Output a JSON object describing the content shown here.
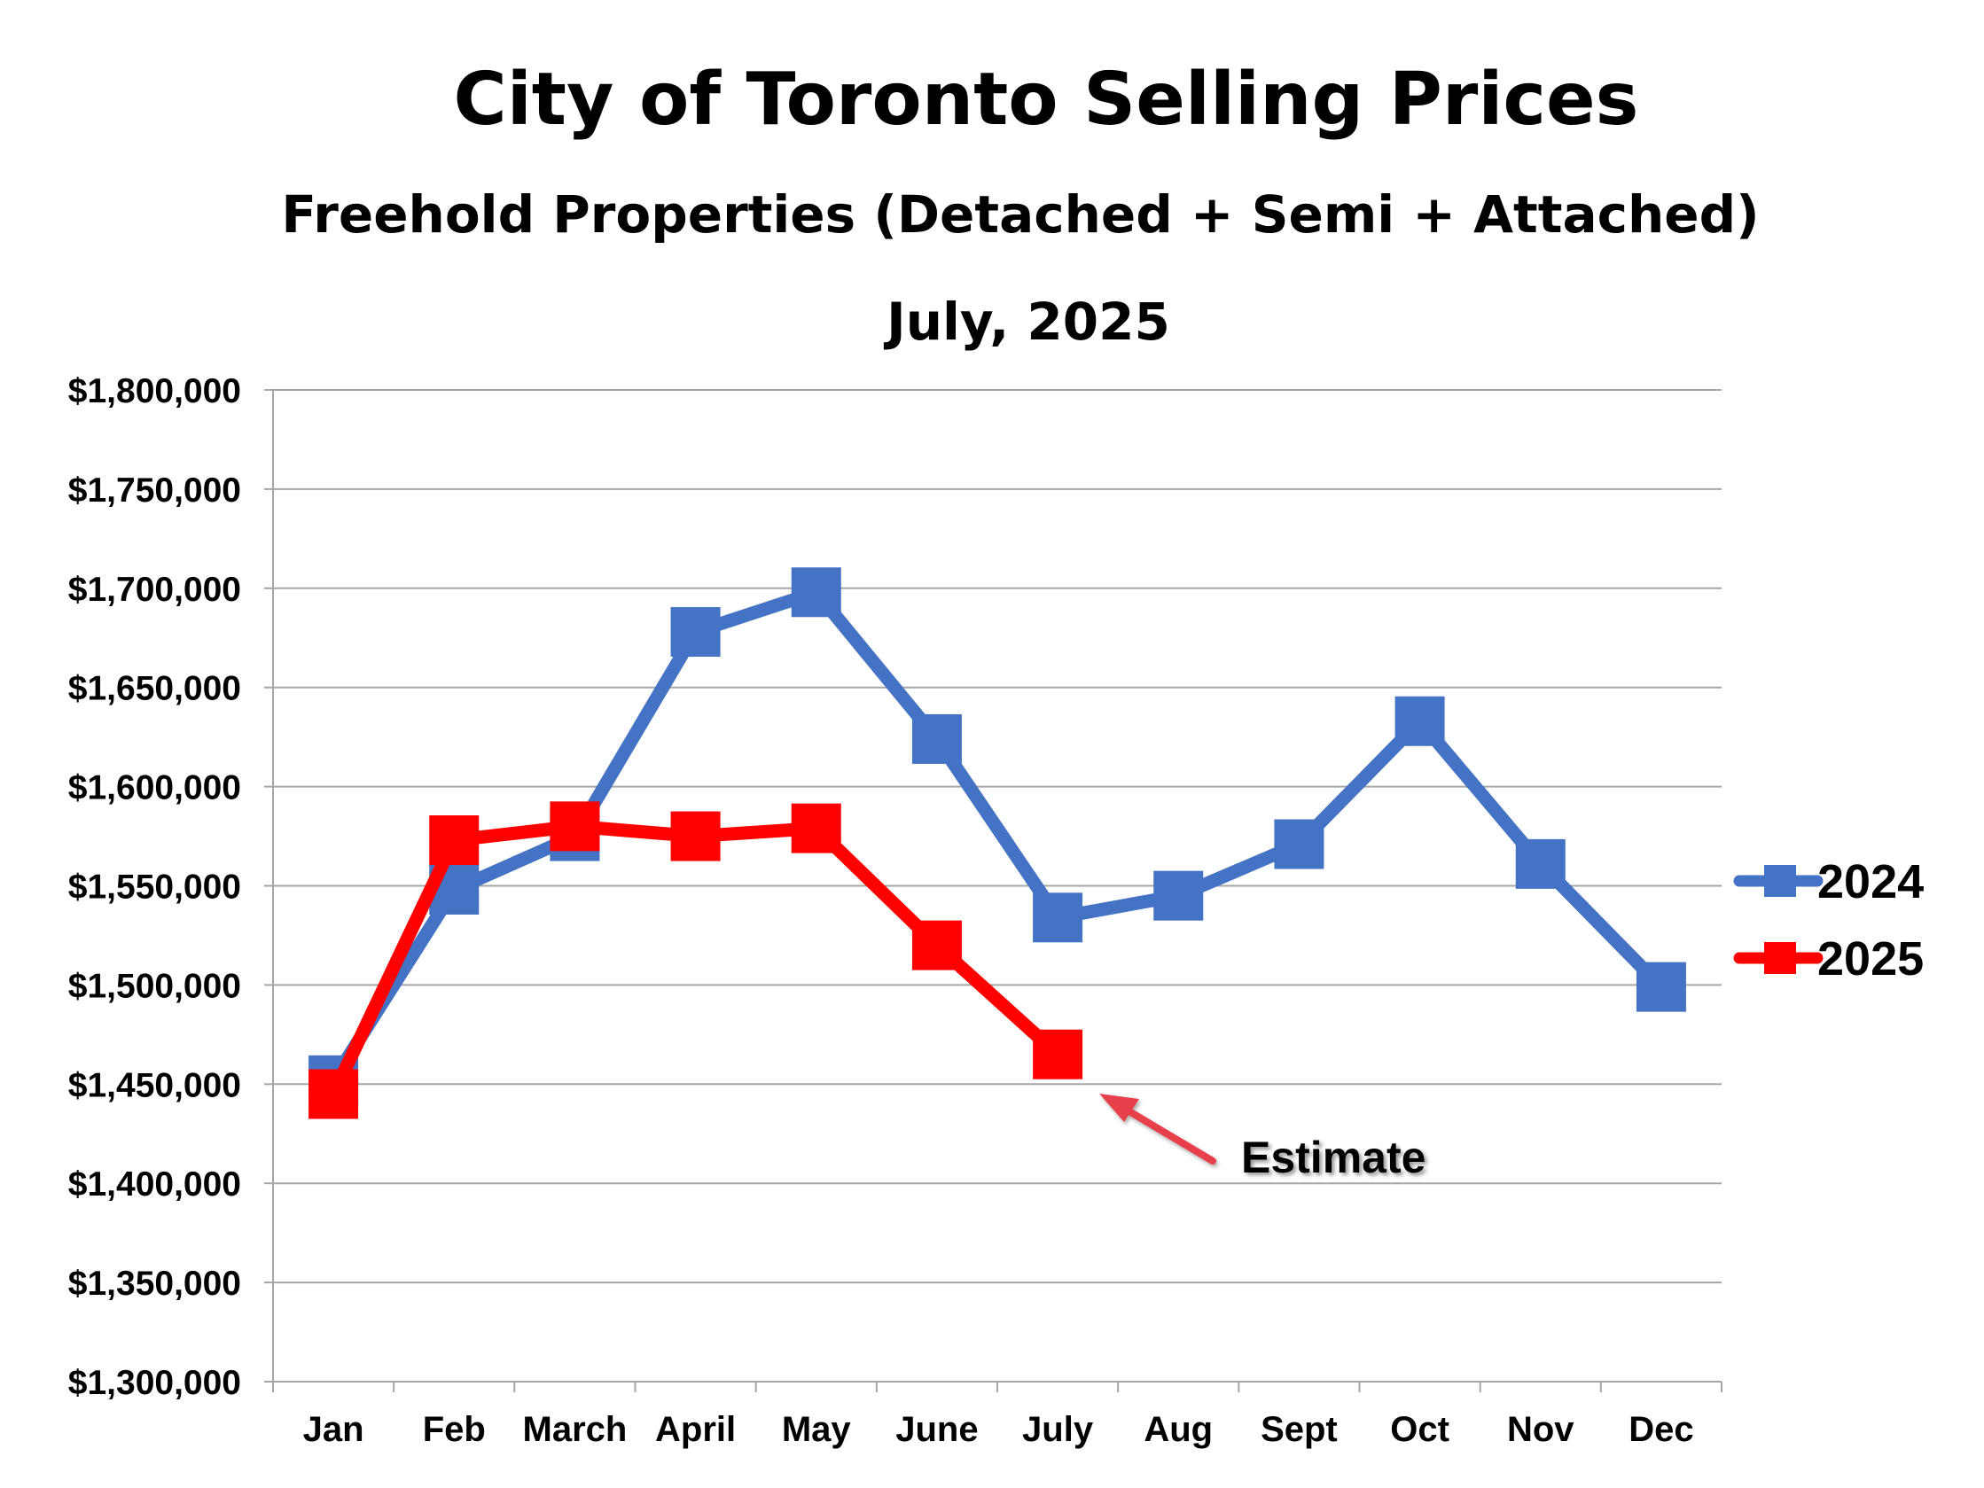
{
  "chart_data": {
    "type": "line",
    "title": "City of Toronto Selling Prices",
    "subtitle": "Freehold Properties (Detached + Semi + Attached)",
    "date_label": "July, 2025",
    "xlabel": "",
    "ylabel": "",
    "categories": [
      "Jan",
      "Feb",
      "March",
      "April",
      "May",
      "June",
      "July",
      "Aug",
      "Sept",
      "Oct",
      "Nov",
      "Dec"
    ],
    "ylim": [
      1300000,
      1800000
    ],
    "yticks": [
      1300000,
      1350000,
      1400000,
      1450000,
      1500000,
      1550000,
      1600000,
      1650000,
      1700000,
      1750000,
      1800000
    ],
    "ytick_labels": [
      "$1,300,000",
      "$1,350,000",
      "$1,400,000",
      "$1,450,000",
      "$1,500,000",
      "$1,550,000",
      "$1,600,000",
      "$1,650,000",
      "$1,700,000",
      "$1,750,000",
      "$1,800,000"
    ],
    "grid": true,
    "legend_position": "right",
    "series": [
      {
        "name": "2024",
        "color": "#4472C4",
        "values": [
          1452000,
          1548000,
          1575000,
          1678000,
          1698000,
          1624000,
          1534000,
          1545000,
          1571000,
          1633000,
          1561000,
          1499000
        ]
      },
      {
        "name": "2025",
        "color": "#FF0000",
        "values": [
          1445000,
          1573000,
          1580000,
          1575000,
          1579000,
          1520000,
          1465000,
          null,
          null,
          null,
          null,
          null
        ]
      }
    ],
    "annotations": [
      {
        "text": "Estimate",
        "series": "2025",
        "category": "July",
        "arrow_color": "#E8414B"
      }
    ]
  }
}
